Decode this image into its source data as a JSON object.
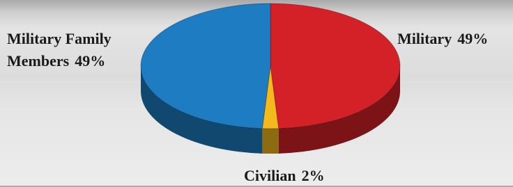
{
  "chart_data": {
    "type": "pie",
    "categories": [
      "Military",
      "Civilian",
      "Military Family Members"
    ],
    "values": [
      49,
      2,
      49
    ],
    "value_labels": [
      "49%",
      "2%",
      "49%"
    ],
    "colors": [
      "#d42128",
      "#f3b91d",
      "#1e7cc2"
    ]
  }
}
